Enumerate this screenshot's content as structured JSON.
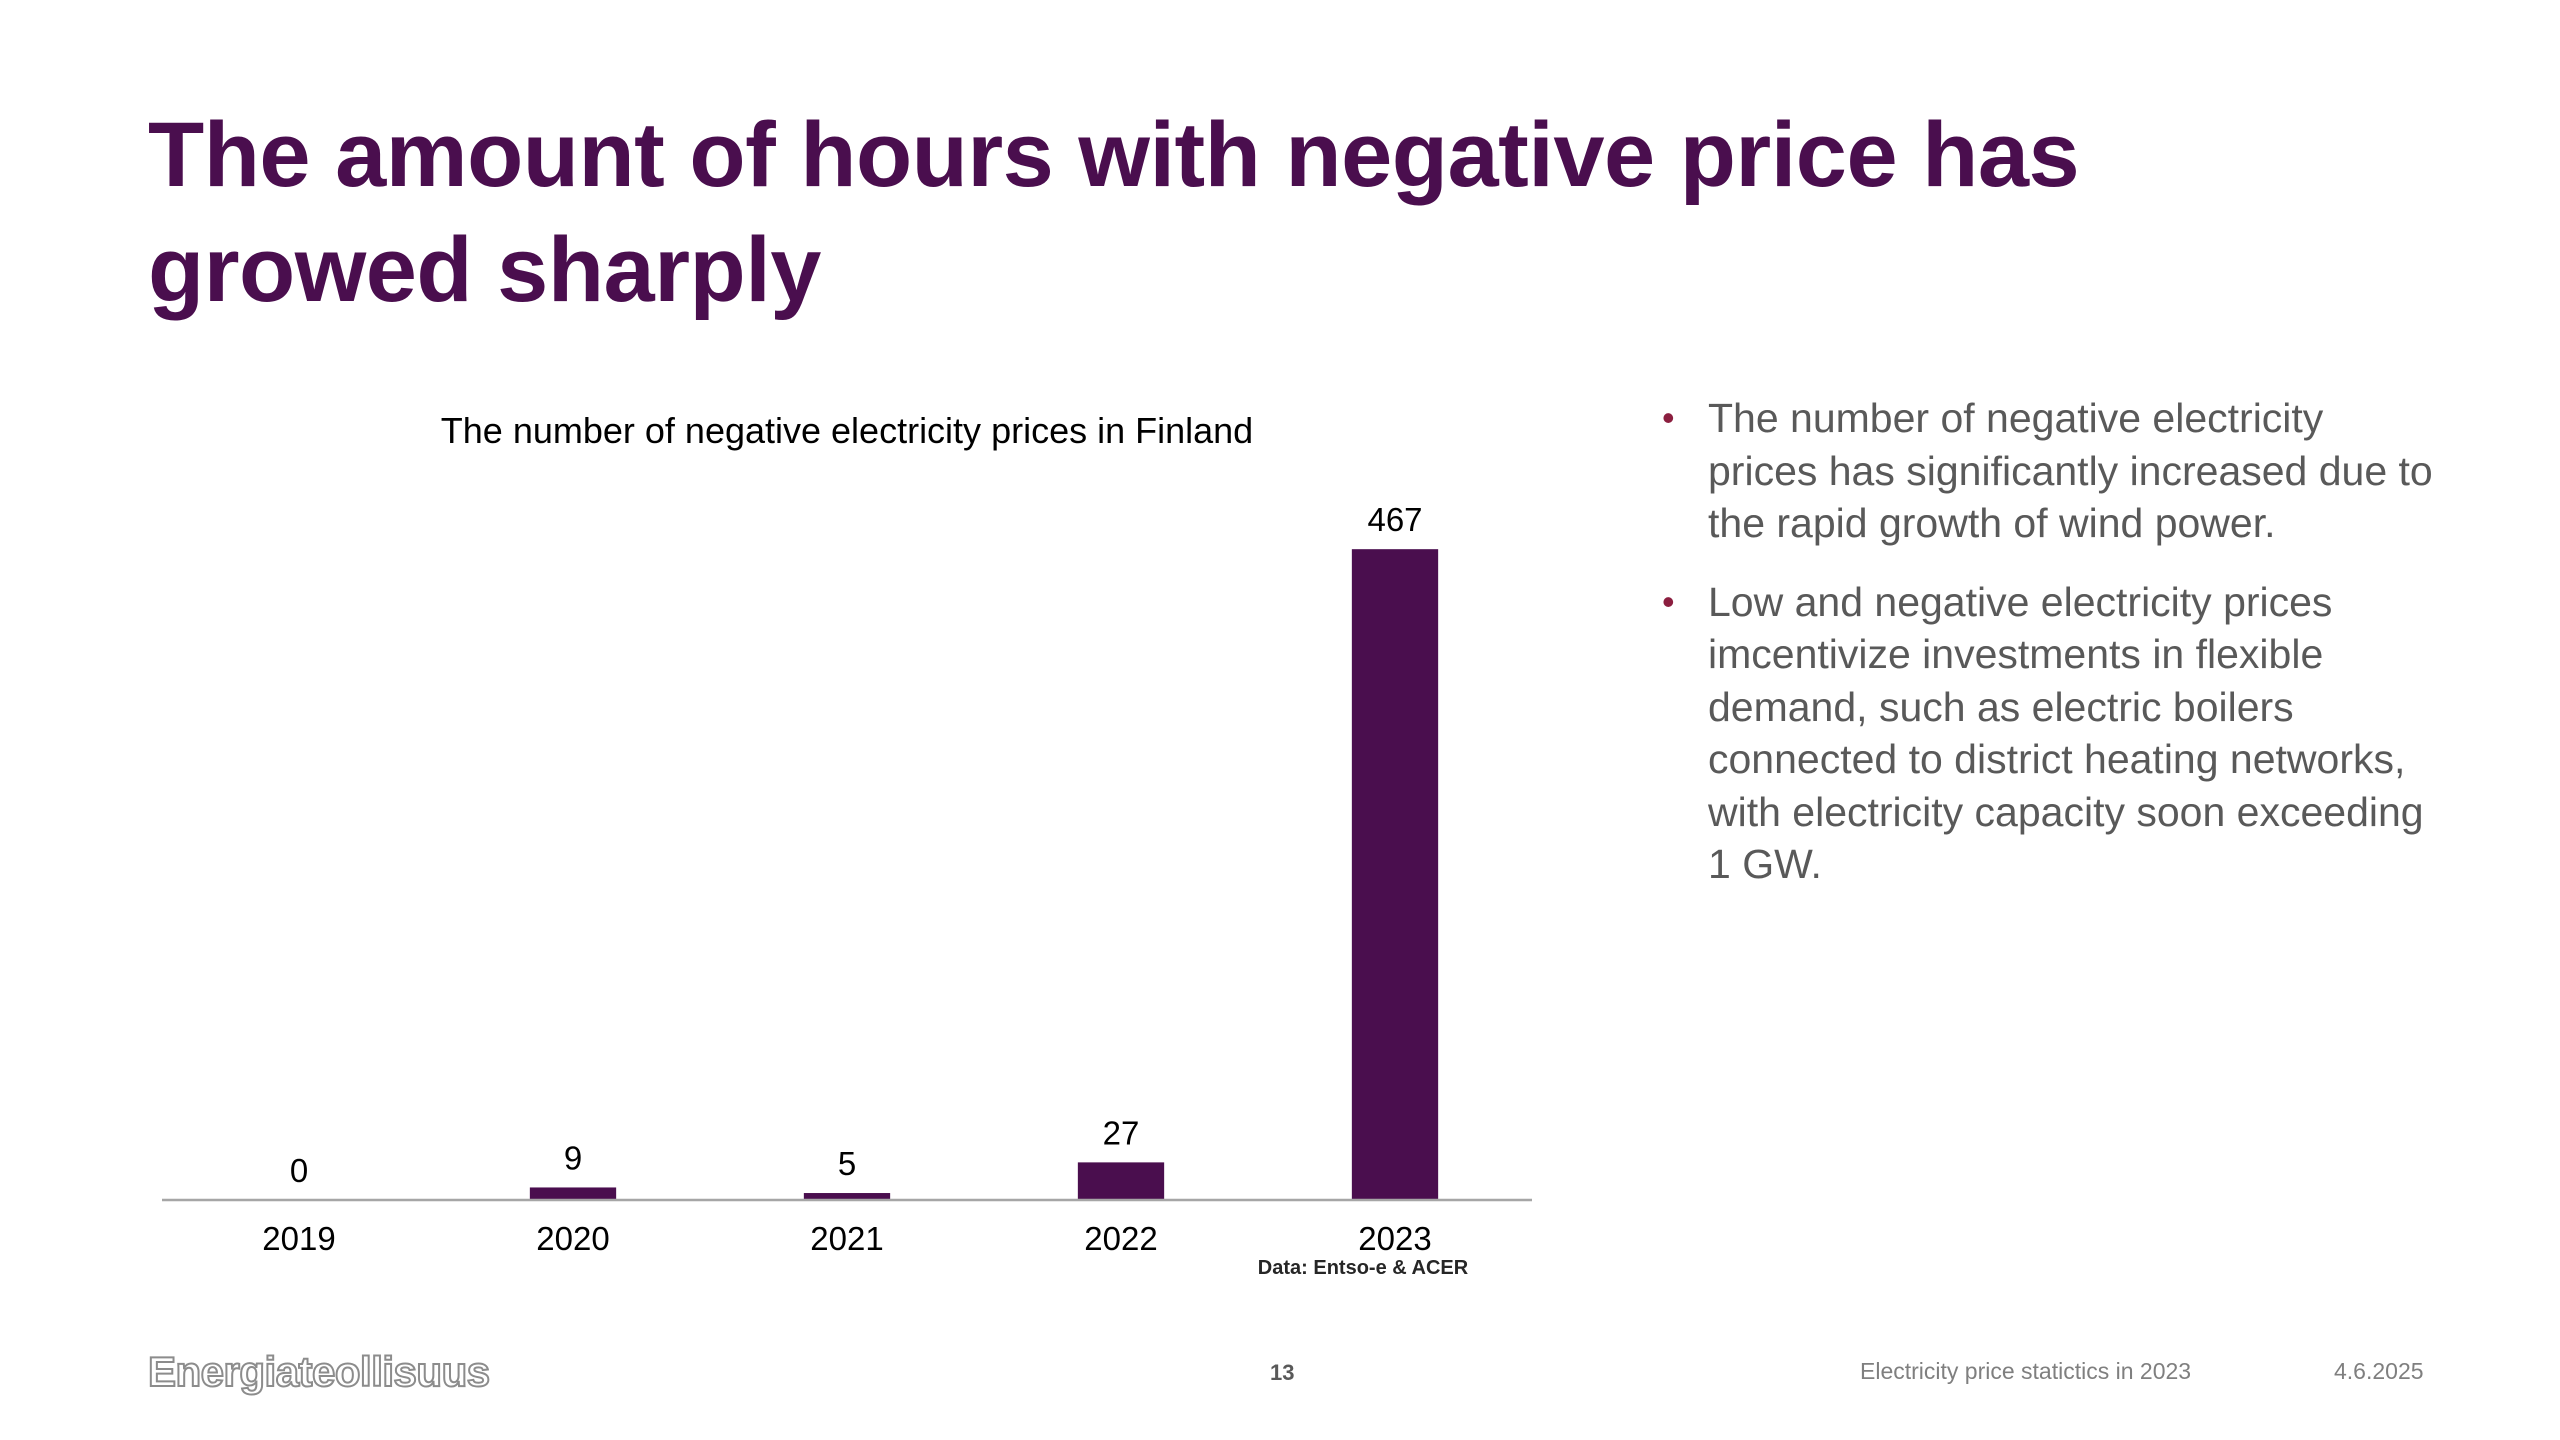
{
  "slide": {
    "title": "The amount of hours with negative price has growed sharply"
  },
  "chart_data": {
    "type": "bar",
    "title": "The number of negative electricity prices in Finland",
    "categories": [
      "2019",
      "2020",
      "2021",
      "2022",
      "2023"
    ],
    "values": [
      0,
      9,
      5,
      27,
      467
    ],
    "xlabel": "",
    "ylabel": "",
    "ylim": [
      0,
      470
    ],
    "grid": false,
    "bar_color": "#4a0e4e",
    "source_note": "Data: Entso-e & ACER"
  },
  "bullets": [
    "The number of negative electricity prices has significantly increased due to the rapid growth of wind power.",
    "Low and negative electricity prices imcentivize investments in flexible demand, such as electric boilers connected to district heating networks, with electricity capacity soon exceeding 1 GW."
  ],
  "footer": {
    "logo_text": "Energiateollisuus",
    "page_number": "13",
    "document_title": "Electricity price statictics in 2023",
    "date": "4.6.2025"
  },
  "colors": {
    "title": "#4a0e4e",
    "bullet_marker": "#8b1e3f",
    "body_text": "#595959"
  }
}
